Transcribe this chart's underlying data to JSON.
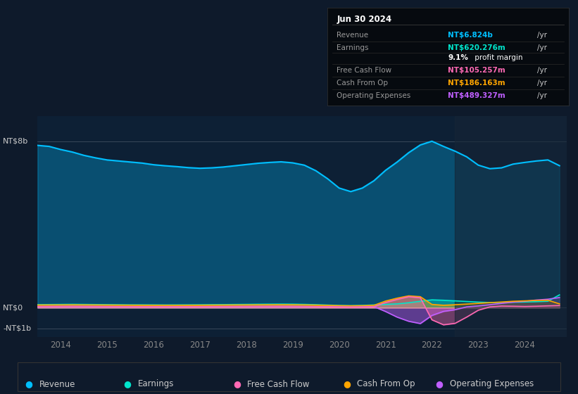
{
  "background_color": "#0e1a2b",
  "plot_bg_color": "#0d2035",
  "title_box": {
    "date": "Jun 30 2024",
    "rows": [
      {
        "label": "Revenue",
        "value": "NT$6.824b",
        "unit": "/yr",
        "color": "#00bfff"
      },
      {
        "label": "Earnings",
        "value": "NT$620.276m",
        "unit": "/yr",
        "color": "#00e5cc"
      },
      {
        "label": "",
        "value": "9.1%",
        "unit": " profit margin",
        "color": "#ffffff"
      },
      {
        "label": "Free Cash Flow",
        "value": "NT$105.257m",
        "unit": "/yr",
        "color": "#ff69b4"
      },
      {
        "label": "Cash From Op",
        "value": "NT$186.163m",
        "unit": "/yr",
        "color": "#ffa500"
      },
      {
        "label": "Operating Expenses",
        "value": "NT$489.327m",
        "unit": "/yr",
        "color": "#bf5fff"
      }
    ]
  },
  "yticks_labels": [
    "NT$8b",
    "NT$0",
    "-NT$1b"
  ],
  "ytick_values": [
    8000,
    0,
    -1000
  ],
  "ylim": [
    -1400,
    9200
  ],
  "xlim": [
    2013.5,
    2024.9
  ],
  "xticks": [
    2014,
    2015,
    2016,
    2017,
    2018,
    2019,
    2020,
    2021,
    2022,
    2023,
    2024
  ],
  "legend": [
    {
      "label": "Revenue",
      "color": "#00bfff"
    },
    {
      "label": "Earnings",
      "color": "#00e5cc"
    },
    {
      "label": "Free Cash Flow",
      "color": "#ff69b4"
    },
    {
      "label": "Cash From Op",
      "color": "#ffa500"
    },
    {
      "label": "Operating Expenses",
      "color": "#bf5fff"
    }
  ],
  "series": {
    "x": [
      2013.5,
      2013.75,
      2014.0,
      2014.25,
      2014.5,
      2014.75,
      2015.0,
      2015.25,
      2015.5,
      2015.75,
      2016.0,
      2016.25,
      2016.5,
      2016.75,
      2017.0,
      2017.25,
      2017.5,
      2017.75,
      2018.0,
      2018.25,
      2018.5,
      2018.75,
      2019.0,
      2019.25,
      2019.5,
      2019.75,
      2020.0,
      2020.25,
      2020.5,
      2020.75,
      2021.0,
      2021.25,
      2021.5,
      2021.75,
      2022.0,
      2022.25,
      2022.5,
      2022.75,
      2023.0,
      2023.25,
      2023.5,
      2023.75,
      2024.0,
      2024.25,
      2024.5,
      2024.75
    ],
    "revenue": [
      7800,
      7750,
      7600,
      7480,
      7320,
      7200,
      7100,
      7050,
      7000,
      6950,
      6870,
      6820,
      6780,
      6730,
      6700,
      6720,
      6760,
      6820,
      6880,
      6940,
      6980,
      7010,
      6960,
      6850,
      6580,
      6200,
      5750,
      5580,
      5750,
      6100,
      6600,
      7000,
      7450,
      7820,
      8000,
      7750,
      7520,
      7250,
      6850,
      6680,
      6720,
      6900,
      6980,
      7050,
      7100,
      6824
    ],
    "earnings": [
      150,
      155,
      160,
      165,
      160,
      155,
      150,
      145,
      140,
      140,
      138,
      135,
      137,
      140,
      143,
      148,
      152,
      158,
      162,
      168,
      172,
      175,
      172,
      162,
      148,
      130,
      110,
      100,
      112,
      135,
      160,
      185,
      240,
      310,
      380,
      360,
      330,
      300,
      270,
      250,
      255,
      265,
      275,
      290,
      310,
      620
    ],
    "free_cash_flow": [
      60,
      62,
      65,
      68,
      65,
      62,
      58,
      55,
      53,
      52,
      50,
      48,
      49,
      51,
      53,
      56,
      58,
      61,
      63,
      66,
      68,
      70,
      68,
      62,
      54,
      44,
      30,
      22,
      30,
      48,
      250,
      400,
      530,
      480,
      -580,
      -820,
      -750,
      -450,
      -120,
      40,
      80,
      72,
      60,
      72,
      90,
      105
    ],
    "cash_from_op": [
      130,
      133,
      136,
      139,
      136,
      133,
      129,
      126,
      123,
      121,
      119,
      117,
      118,
      120,
      122,
      126,
      129,
      133,
      136,
      140,
      143,
      145,
      142,
      136,
      126,
      114,
      100,
      93,
      100,
      116,
      320,
      460,
      570,
      530,
      160,
      120,
      145,
      175,
      210,
      245,
      275,
      310,
      330,
      350,
      360,
      186
    ],
    "operating_expenses": [
      55,
      57,
      58,
      59,
      58,
      57,
      55,
      54,
      53,
      52,
      51,
      50,
      51,
      52,
      53,
      55,
      56,
      57,
      58,
      59,
      59,
      58,
      57,
      55,
      53,
      51,
      49,
      48,
      50,
      55,
      -180,
      -450,
      -650,
      -760,
      -370,
      -175,
      -95,
      40,
      85,
      145,
      210,
      270,
      310,
      370,
      410,
      489
    ]
  }
}
